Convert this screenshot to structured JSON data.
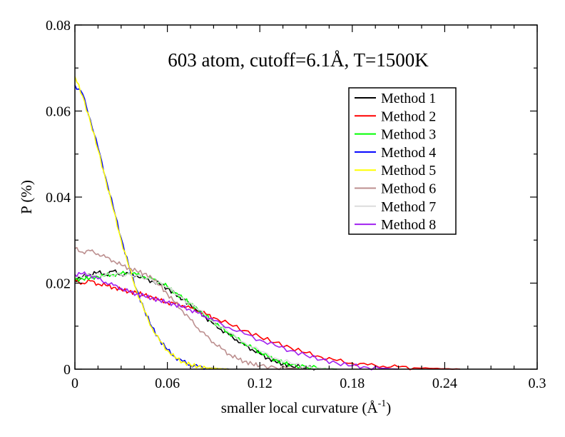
{
  "chart_data": {
    "type": "line",
    "title": "603 atom, cutoff=6.1Å, T=1500K",
    "xlabel_main": "smaller local curvature (",
    "xlabel_unit": "Å",
    "xlabel_sup": "-1",
    "xlabel_close": ")",
    "ylabel": "P (%)",
    "xlim": [
      0,
      0.3
    ],
    "ylim": [
      0,
      0.08
    ],
    "xticks": [
      0,
      0.06,
      0.12,
      0.18,
      0.24,
      0.3
    ],
    "xtick_labels": [
      "0",
      "0.06",
      "0.12",
      "0.18",
      "0.24",
      "0.3"
    ],
    "yticks": [
      0,
      0.02,
      0.04,
      0.06,
      0.08
    ],
    "ytick_labels": [
      "0",
      "0.02",
      "0.04",
      "0.06",
      "0.08"
    ],
    "grid": false,
    "legend_position": "top-right",
    "series": [
      {
        "name": "Method 1",
        "color": "#000000",
        "x": [
          0,
          0.005,
          0.01,
          0.015,
          0.02,
          0.025,
          0.03,
          0.035,
          0.04,
          0.045,
          0.05,
          0.055,
          0.06,
          0.065,
          0.07,
          0.075,
          0.08,
          0.085,
          0.09,
          0.095,
          0.1,
          0.105,
          0.11,
          0.115,
          0.12,
          0.125,
          0.13,
          0.135,
          0.14,
          0.15,
          0.16,
          0.17
        ],
        "y": [
          0.0205,
          0.0215,
          0.022,
          0.0225,
          0.022,
          0.0228,
          0.022,
          0.0222,
          0.0218,
          0.021,
          0.0205,
          0.0198,
          0.0188,
          0.0175,
          0.0162,
          0.015,
          0.0135,
          0.012,
          0.0105,
          0.0092,
          0.008,
          0.0068,
          0.0056,
          0.0046,
          0.0036,
          0.0026,
          0.0018,
          0.0012,
          0.0008,
          0.0004,
          0.0002,
          0.0
        ]
      },
      {
        "name": "Method 2",
        "color": "#ff0000",
        "x": [
          0,
          0.005,
          0.01,
          0.015,
          0.02,
          0.025,
          0.03,
          0.035,
          0.04,
          0.045,
          0.05,
          0.055,
          0.06,
          0.065,
          0.07,
          0.075,
          0.08,
          0.085,
          0.09,
          0.1,
          0.11,
          0.12,
          0.13,
          0.14,
          0.15,
          0.16,
          0.17,
          0.18,
          0.19,
          0.2,
          0.21,
          0.22,
          0.23,
          0.24,
          0.25
        ],
        "y": [
          0.0205,
          0.02,
          0.0205,
          0.0198,
          0.0195,
          0.019,
          0.0185,
          0.018,
          0.0178,
          0.0172,
          0.0168,
          0.016,
          0.0155,
          0.0152,
          0.0148,
          0.0142,
          0.0135,
          0.0128,
          0.012,
          0.0105,
          0.009,
          0.0075,
          0.0062,
          0.005,
          0.0038,
          0.0028,
          0.002,
          0.0014,
          0.001,
          0.0007,
          0.0005,
          0.0003,
          0.0002,
          0.0001,
          0.0
        ]
      },
      {
        "name": "Method 3",
        "color": "#00ff00",
        "x": [
          0,
          0.005,
          0.01,
          0.015,
          0.02,
          0.025,
          0.03,
          0.035,
          0.04,
          0.045,
          0.05,
          0.055,
          0.06,
          0.065,
          0.07,
          0.075,
          0.08,
          0.085,
          0.09,
          0.095,
          0.1,
          0.105,
          0.11,
          0.115,
          0.12,
          0.125,
          0.13,
          0.135,
          0.14,
          0.15,
          0.16,
          0.17
        ],
        "y": [
          0.0208,
          0.021,
          0.0212,
          0.0215,
          0.0218,
          0.022,
          0.0222,
          0.0224,
          0.022,
          0.0215,
          0.021,
          0.0202,
          0.0192,
          0.0178,
          0.0165,
          0.0152,
          0.0138,
          0.0124,
          0.011,
          0.0096,
          0.0084,
          0.0072,
          0.006,
          0.005,
          0.004,
          0.003,
          0.0022,
          0.0015,
          0.001,
          0.0005,
          0.0002,
          0.0
        ]
      },
      {
        "name": "Method 4",
        "color": "#0000ff",
        "x": [
          0,
          0.005,
          0.01,
          0.015,
          0.02,
          0.025,
          0.03,
          0.035,
          0.04,
          0.045,
          0.05,
          0.055,
          0.06,
          0.065,
          0.07,
          0.075,
          0.08,
          0.085,
          0.09,
          0.095,
          0.1
        ],
        "y": [
          0.066,
          0.064,
          0.058,
          0.0515,
          0.0445,
          0.0375,
          0.0305,
          0.024,
          0.0185,
          0.0138,
          0.0098,
          0.0068,
          0.0045,
          0.0028,
          0.0018,
          0.001,
          0.0006,
          0.0003,
          0.0002,
          0.0001,
          0.0
        ]
      },
      {
        "name": "Method 5",
        "color": "#ffff00",
        "x": [
          0,
          0.005,
          0.01,
          0.015,
          0.02,
          0.025,
          0.03,
          0.035,
          0.04,
          0.045,
          0.05,
          0.055,
          0.06,
          0.065,
          0.07,
          0.075,
          0.08,
          0.085,
          0.09,
          0.095,
          0.1
        ],
        "y": [
          0.068,
          0.0635,
          0.0575,
          0.051,
          0.044,
          0.037,
          0.03,
          0.0238,
          0.0183,
          0.0136,
          0.0096,
          0.0066,
          0.0044,
          0.0027,
          0.0017,
          0.001,
          0.0006,
          0.0003,
          0.0002,
          0.0001,
          0.0
        ]
      },
      {
        "name": "Method 6",
        "color": "#bc8f8f",
        "x": [
          0,
          0.005,
          0.01,
          0.015,
          0.02,
          0.025,
          0.03,
          0.035,
          0.04,
          0.045,
          0.05,
          0.055,
          0.06,
          0.065,
          0.07,
          0.075,
          0.08,
          0.085,
          0.09,
          0.095,
          0.1,
          0.105,
          0.11,
          0.115,
          0.12,
          0.13,
          0.14,
          0.15
        ],
        "y": [
          0.028,
          0.0272,
          0.0275,
          0.0268,
          0.026,
          0.0252,
          0.0242,
          0.0235,
          0.0228,
          0.0222,
          0.0212,
          0.0195,
          0.0175,
          0.0155,
          0.0135,
          0.0115,
          0.0095,
          0.0078,
          0.0062,
          0.0048,
          0.0035,
          0.0025,
          0.0018,
          0.0012,
          0.0008,
          0.0004,
          0.0002,
          0.0
        ]
      },
      {
        "name": "Method 7",
        "color": "#dcdcdc",
        "x": [
          0,
          0.01,
          0.02,
          0.03,
          0.04,
          0.05,
          0.06,
          0.07,
          0.08,
          0.09,
          0.1,
          0.11,
          0.12,
          0.13,
          0.14,
          0.15,
          0.16,
          0.17
        ],
        "y": [
          0.0215,
          0.0218,
          0.022,
          0.022,
          0.0218,
          0.0208,
          0.019,
          0.0165,
          0.0138,
          0.011,
          0.0085,
          0.0062,
          0.0042,
          0.0026,
          0.0014,
          0.0006,
          0.0002,
          0.0
        ]
      },
      {
        "name": "Method 8",
        "color": "#a020f0",
        "x": [
          0,
          0.005,
          0.01,
          0.015,
          0.02,
          0.025,
          0.03,
          0.035,
          0.04,
          0.045,
          0.05,
          0.055,
          0.06,
          0.065,
          0.07,
          0.075,
          0.08,
          0.085,
          0.09,
          0.1,
          0.11,
          0.12,
          0.13,
          0.14,
          0.15,
          0.16,
          0.17,
          0.18,
          0.19,
          0.2,
          0.21
        ],
        "y": [
          0.022,
          0.0222,
          0.0218,
          0.021,
          0.0202,
          0.0195,
          0.0188,
          0.018,
          0.0175,
          0.017,
          0.0165,
          0.016,
          0.0155,
          0.015,
          0.0144,
          0.0138,
          0.013,
          0.0122,
          0.0113,
          0.0097,
          0.0082,
          0.0068,
          0.0055,
          0.0043,
          0.0032,
          0.0022,
          0.0014,
          0.0008,
          0.0004,
          0.0002,
          0.0
        ]
      }
    ]
  }
}
